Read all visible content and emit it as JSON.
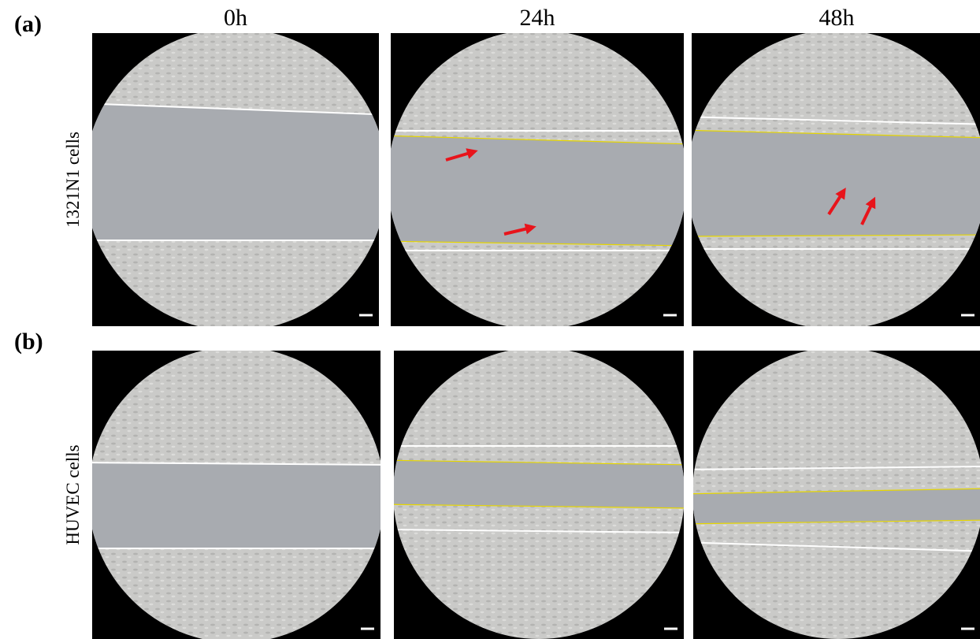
{
  "figure": {
    "panel_labels": [
      "(a)",
      "(b)"
    ],
    "columns": [
      "0h",
      "24h",
      "48h"
    ],
    "row_labels": [
      "1321N1 cells",
      "HUVEC cells"
    ]
  }
}
